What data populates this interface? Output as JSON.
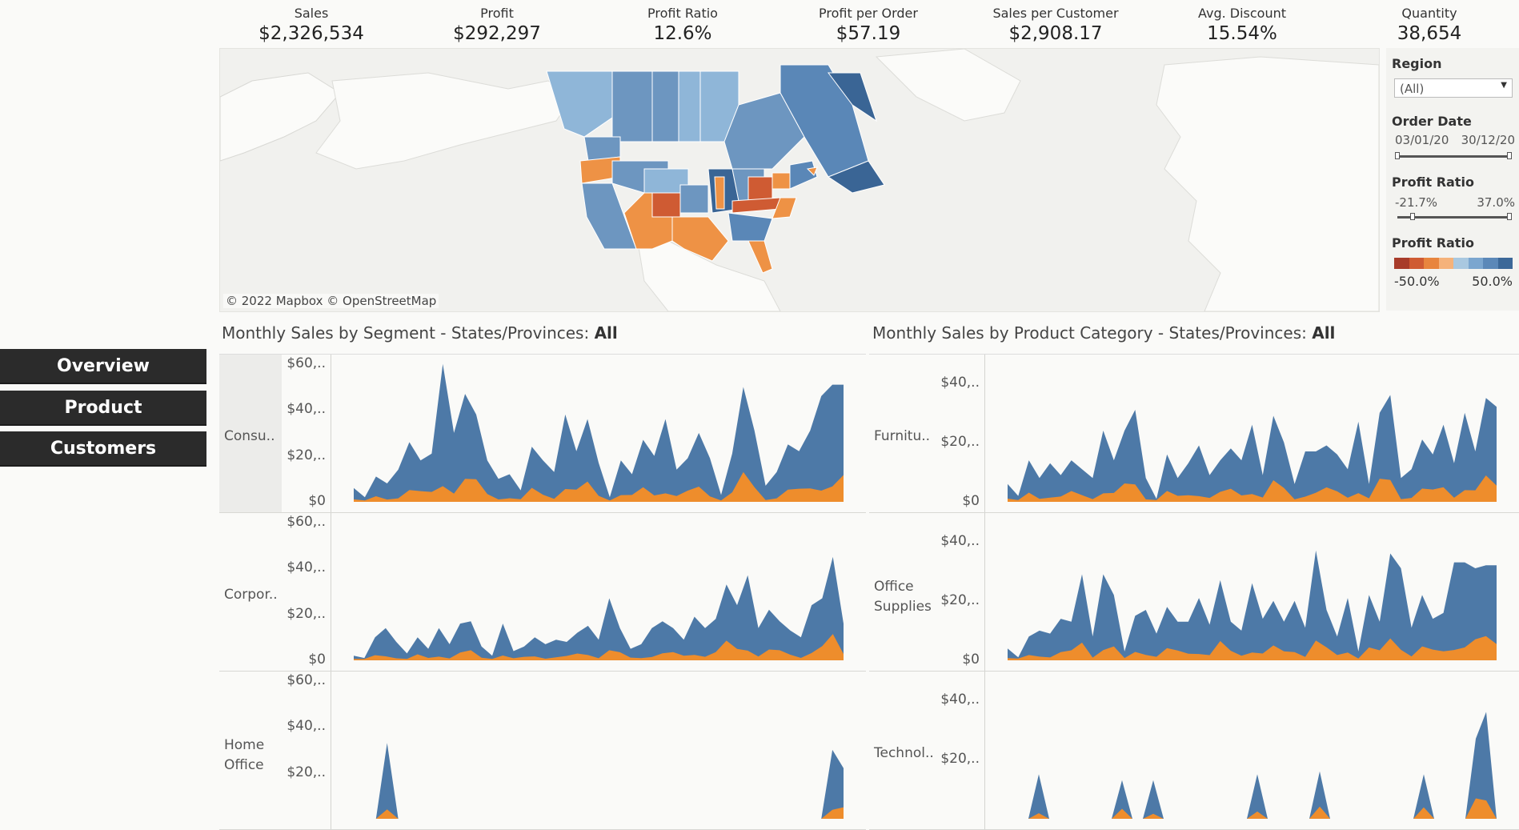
{
  "kpis": [
    {
      "label": "Sales",
      "value": "$2,326,534"
    },
    {
      "label": "Profit",
      "value": "$292,297"
    },
    {
      "label": "Profit Ratio",
      "value": "12.6%"
    },
    {
      "label": "Profit per Order",
      "value": "$57.19"
    },
    {
      "label": "Sales per Customer",
      "value": "$2,908.17"
    },
    {
      "label": "Avg. Discount",
      "value": "15.54%"
    },
    {
      "label": "Quantity",
      "value": "38,654"
    }
  ],
  "map": {
    "credit": "© 2022 Mapbox © OpenStreetMap"
  },
  "filters": {
    "region_title": "Region",
    "region_value": "(All)",
    "order_date_title": "Order Date",
    "order_date_start": "03/01/20",
    "order_date_end": "30/12/20",
    "profit_ratio_title": "Profit Ratio",
    "profit_ratio_min": "-21.7%",
    "profit_ratio_max": "37.0%",
    "legend_title": "Profit Ratio",
    "legend_min": "-50.0%",
    "legend_max": "50.0%"
  },
  "colors": {
    "legend": [
      "#a83c2a",
      "#cf5b33",
      "#e8853e",
      "#f5b27a",
      "#a9c8e0",
      "#7ba6cf",
      "#5b88b8",
      "#3c6898"
    ],
    "blue": "#4d79a7",
    "orange": "#ee8d2c"
  },
  "nav": [
    {
      "label": "Overview"
    },
    {
      "label": "Product"
    },
    {
      "label": "Customers"
    }
  ],
  "segment_chart": {
    "title_prefix": "Monthly Sales by Segment - States/Provinces:",
    "title_value": "All",
    "rows": [
      {
        "label": "Consu..",
        "ticks": [
          "$60,..",
          "$40,..",
          "$20,..",
          "$0"
        ]
      },
      {
        "label": "Corpor..",
        "ticks": [
          "$60,..",
          "$40,..",
          "$20,..",
          "$0"
        ]
      },
      {
        "label": "Home Office",
        "ticks": [
          "$60,..",
          "$40,..",
          "$20,.."
        ]
      }
    ]
  },
  "category_chart": {
    "title_prefix": "Monthly Sales by Product Category - States/Provinces:",
    "title_value": "All",
    "rows": [
      {
        "label": "Furnitu..",
        "ticks": [
          "$40,..",
          "$20,..",
          "$0"
        ]
      },
      {
        "label": "Office Supplies",
        "ticks": [
          "$40,..",
          "$20,..",
          "$0"
        ]
      },
      {
        "label": "Technol..",
        "ticks": [
          "$40,..",
          "$20,.."
        ]
      }
    ]
  },
  "chart_data": [
    {
      "type": "area",
      "title": "Monthly Sales by Segment - States/Provinces: All",
      "facets": [
        "Consu..",
        "Corpor..",
        "Home Office"
      ],
      "ylim": [
        0,
        62000
      ],
      "series": [
        {
          "facet": "Consu..",
          "values": [
            6000,
            2000,
            11000,
            8000,
            14000,
            26000,
            18000,
            21000,
            60000,
            30000,
            47000,
            38000,
            18000,
            10000,
            12000,
            5000,
            24000,
            18000,
            13000,
            38000,
            22000,
            36000,
            17000,
            2000,
            18000,
            12000,
            27000,
            20000,
            36000,
            14000,
            19000,
            30000,
            19000,
            3000,
            21000,
            50000,
            31000,
            7000,
            13000,
            25000,
            22000,
            31000,
            46000,
            51000,
            51000
          ]
        },
        {
          "facet": "Corpor..",
          "values": [
            2000,
            1000,
            10000,
            14000,
            8000,
            3000,
            10000,
            5000,
            14000,
            7000,
            16000,
            17000,
            6000,
            2000,
            16000,
            4000,
            6000,
            10000,
            7000,
            9000,
            8000,
            12000,
            15000,
            9000,
            27000,
            14000,
            5000,
            7000,
            14000,
            17000,
            14000,
            9000,
            19000,
            14000,
            18000,
            33000,
            24000,
            37000,
            14000,
            22000,
            17000,
            13000,
            10000,
            24000,
            27000,
            45000,
            16000
          ]
        },
        {
          "facet": "Home Office",
          "values": [
            0,
            0,
            0,
            33000,
            0,
            0,
            0,
            0,
            0,
            0,
            0,
            0,
            0,
            0,
            0,
            0,
            0,
            0,
            0,
            0,
            0,
            0,
            0,
            0,
            0,
            0,
            0,
            0,
            0,
            0,
            0,
            0,
            0,
            0,
            0,
            0,
            0,
            0,
            0,
            0,
            0,
            0,
            0,
            30000,
            22000
          ]
        }
      ]
    },
    {
      "type": "area",
      "title": "Monthly Sales by Product Category - States/Provinces: All",
      "facets": [
        "Furnitu..",
        "Office Supplies",
        "Technol.."
      ],
      "ylim": [
        0,
        48000
      ],
      "series": [
        {
          "facet": "Furnitu..",
          "values": [
            6000,
            2000,
            14000,
            8000,
            13000,
            9000,
            14000,
            11000,
            8000,
            24000,
            14000,
            24000,
            31000,
            8000,
            1000,
            16000,
            8000,
            13000,
            19000,
            9000,
            14000,
            18000,
            14000,
            26000,
            9000,
            29000,
            20000,
            6000,
            17000,
            17000,
            19000,
            16000,
            11000,
            27000,
            6000,
            30000,
            36000,
            8000,
            11000,
            21000,
            16000,
            26000,
            13000,
            30000,
            17000,
            35000,
            32000
          ]
        },
        {
          "facet": "Office Supplies",
          "values": [
            4000,
            1000,
            8000,
            10000,
            9000,
            14000,
            13000,
            29000,
            8000,
            29000,
            22000,
            3000,
            15000,
            17000,
            9000,
            18000,
            13000,
            13000,
            21000,
            12000,
            27000,
            13000,
            10000,
            26000,
            14000,
            20000,
            13000,
            20000,
            11000,
            37000,
            17000,
            8000,
            21000,
            3000,
            22000,
            13000,
            36000,
            31000,
            11000,
            22000,
            14000,
            16000,
            33000,
            33000,
            31000,
            32000,
            32000
          ]
        },
        {
          "facet": "Technol..",
          "values": [
            0,
            0,
            0,
            15000,
            0,
            0,
            0,
            0,
            0,
            0,
            0,
            13000,
            0,
            0,
            13000,
            0,
            0,
            0,
            0,
            0,
            0,
            0,
            0,
            0,
            15000,
            0,
            0,
            0,
            0,
            0,
            16000,
            0,
            0,
            0,
            0,
            0,
            0,
            0,
            0,
            0,
            15000,
            0,
            0,
            0,
            0,
            27000,
            36000,
            0
          ]
        }
      ]
    }
  ]
}
